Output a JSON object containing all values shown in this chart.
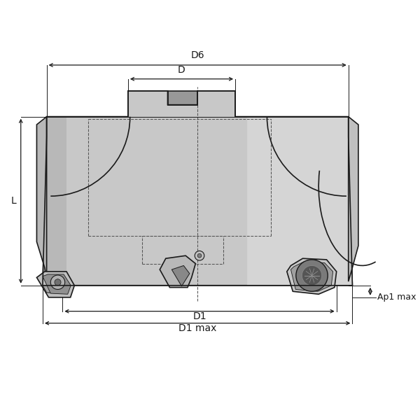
{
  "bg_color": "#ffffff",
  "line_color": "#1a1a1a",
  "gray_fill": "#c8c8c8",
  "gray_dark": "#a0a0a0",
  "gray_light": "#e0e0e0",
  "labels": {
    "D6": "D6",
    "D": "D",
    "D1": "D1",
    "D1max": "D1 max",
    "L": "L",
    "Ap1max": "Ap1 max"
  },
  "figsize": [
    6.0,
    6.0
  ],
  "dpi": 100
}
